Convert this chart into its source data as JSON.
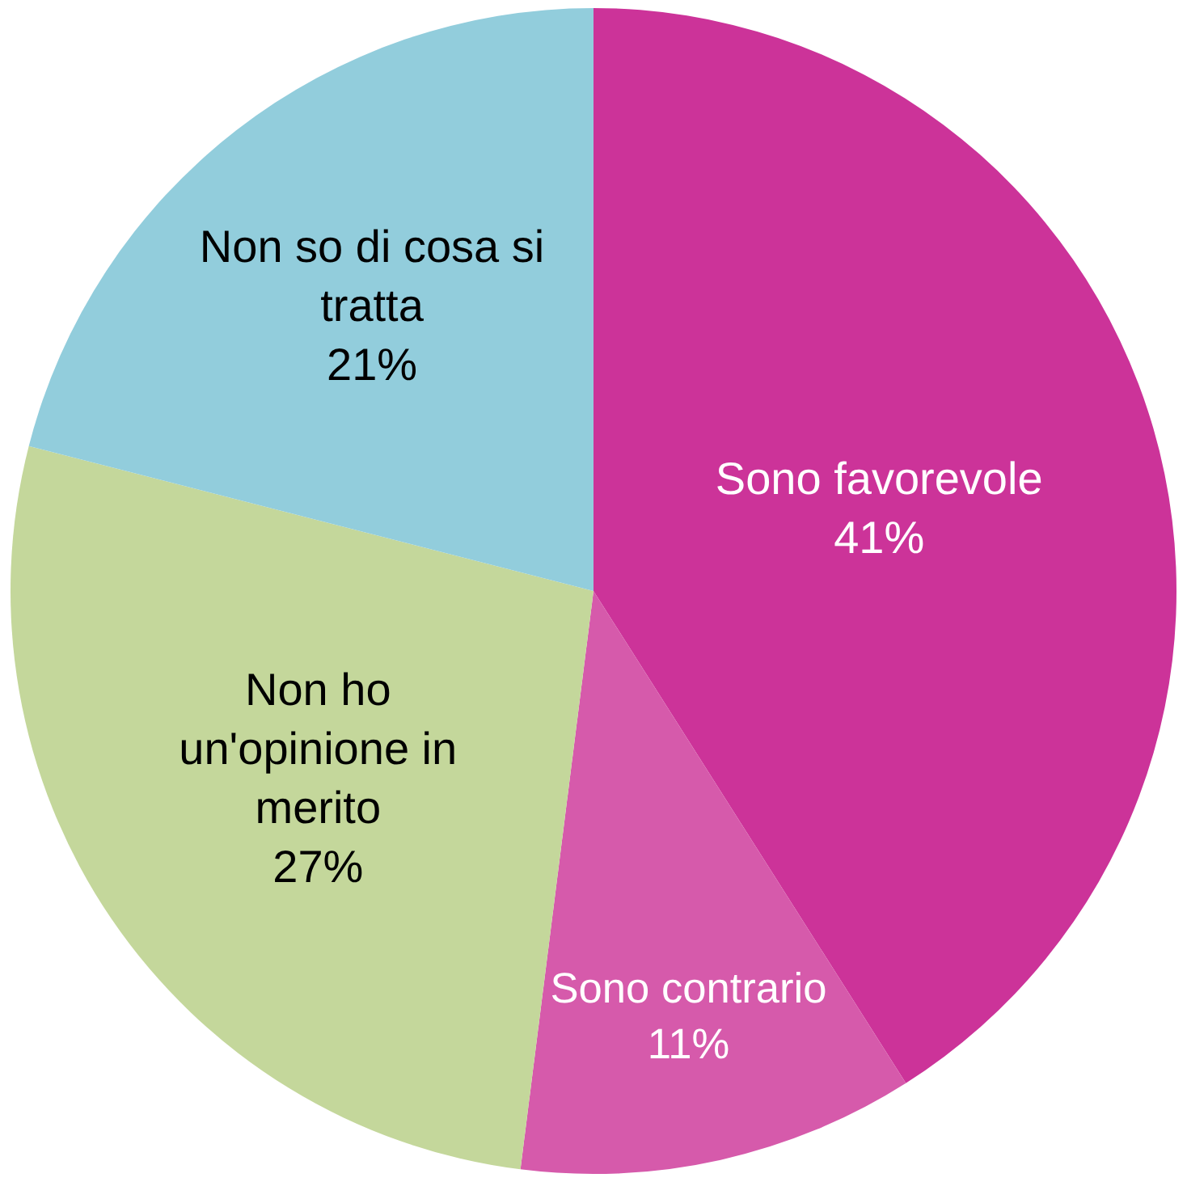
{
  "chart_data": {
    "type": "pie",
    "categories": [
      "Sono favorevole",
      "Sono contrario",
      "Non ho un'opinione in merito",
      "Non so di cosa si tratta"
    ],
    "values": [
      41,
      11,
      27,
      21
    ],
    "value_labels": [
      "41%",
      "11%",
      "27%",
      "21%"
    ],
    "colors": [
      "#cc3399",
      "#d65aab",
      "#c4d79b",
      "#92cddc"
    ],
    "legend": false
  }
}
